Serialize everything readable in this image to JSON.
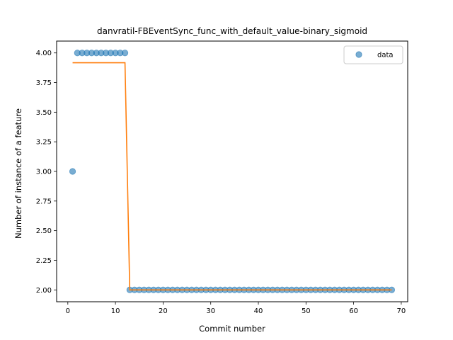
{
  "chart_data": {
    "type": "scatter",
    "title": "danvratil-FBEventSync_func_with_default_value-binary_sigmoid",
    "xlabel": "Commit number",
    "ylabel": "Number of instance of a feature",
    "xlim": [
      -2.35,
      71.35
    ],
    "ylim": [
      1.9,
      4.1
    ],
    "x_ticks": [
      0,
      10,
      20,
      30,
      40,
      50,
      60,
      70
    ],
    "y_ticks": [
      2.0,
      2.25,
      2.5,
      2.75,
      3.0,
      3.25,
      3.5,
      3.75,
      4.0
    ],
    "y_tick_labels": [
      "2.00",
      "2.25",
      "2.50",
      "2.75",
      "3.00",
      "3.25",
      "3.50",
      "3.75",
      "4.00"
    ],
    "grid": false,
    "legend_position": "top-right",
    "series": [
      {
        "name": "data",
        "kind": "scatter",
        "color": "#1f77b4",
        "x": [
          1,
          2,
          3,
          4,
          5,
          6,
          7,
          8,
          9,
          10,
          11,
          12,
          13,
          14,
          15,
          16,
          17,
          18,
          19,
          20,
          21,
          22,
          23,
          24,
          25,
          26,
          27,
          28,
          29,
          30,
          31,
          32,
          33,
          34,
          35,
          36,
          37,
          38,
          39,
          40,
          41,
          42,
          43,
          44,
          45,
          46,
          47,
          48,
          49,
          50,
          51,
          52,
          53,
          54,
          55,
          56,
          57,
          58,
          59,
          60,
          61,
          62,
          63,
          64,
          65,
          66,
          67,
          68
        ],
        "y": [
          3,
          4,
          4,
          4,
          4,
          4,
          4,
          4,
          4,
          4,
          4,
          4,
          2,
          2,
          2,
          2,
          2,
          2,
          2,
          2,
          2,
          2,
          2,
          2,
          2,
          2,
          2,
          2,
          2,
          2,
          2,
          2,
          2,
          2,
          2,
          2,
          2,
          2,
          2,
          2,
          2,
          2,
          2,
          2,
          2,
          2,
          2,
          2,
          2,
          2,
          2,
          2,
          2,
          2,
          2,
          2,
          2,
          2,
          2,
          2,
          2,
          2,
          2,
          2,
          2,
          2,
          2,
          2
        ]
      },
      {
        "kind": "line",
        "color": "#ff7f0e",
        "x": [
          1,
          12,
          13,
          68
        ],
        "y": [
          3.917,
          3.917,
          2.0,
          2.0
        ]
      }
    ]
  }
}
